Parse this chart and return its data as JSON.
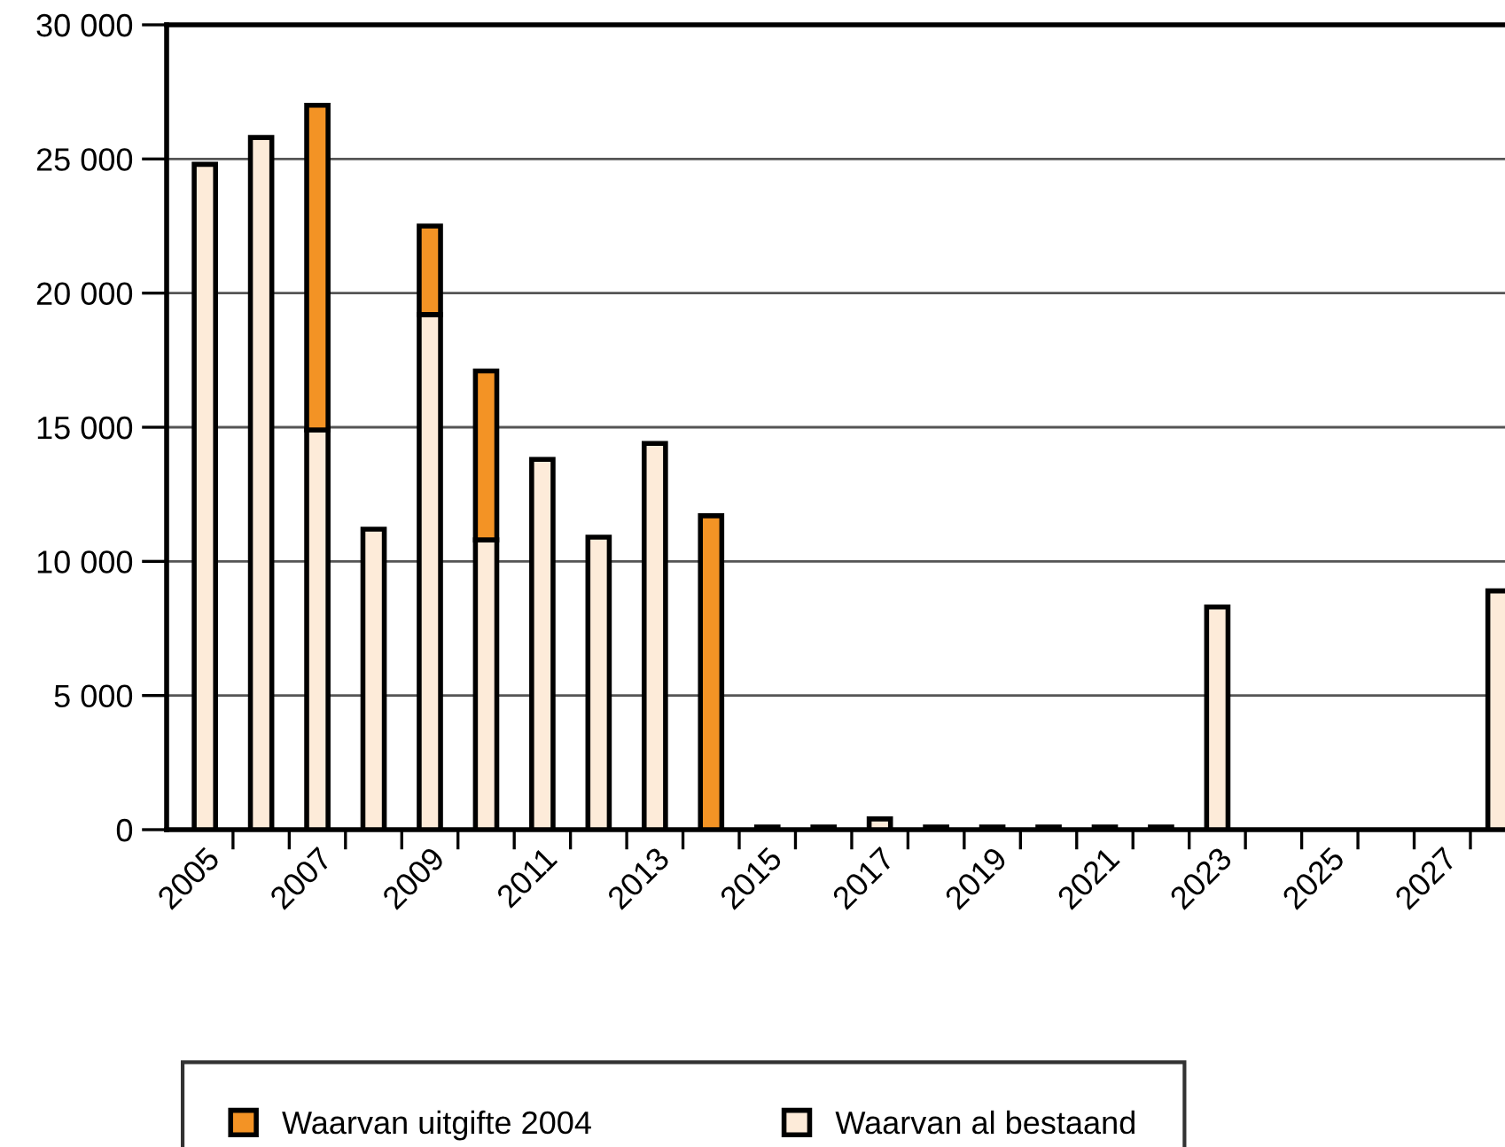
{
  "chart_data": {
    "type": "bar",
    "stacked": true,
    "categories": [
      "2005",
      null,
      "2007",
      null,
      "2009",
      null,
      "2011",
      null,
      "2013",
      null,
      "2015",
      null,
      "2017",
      null,
      "2019",
      null,
      "2021",
      null,
      "2023",
      null,
      "2025",
      null,
      "2027",
      null
    ],
    "series": [
      {
        "name": "Waarvan al bestaand",
        "color": "#fdebd9",
        "values": [
          24800,
          25800,
          14900,
          11200,
          19200,
          10800,
          13800,
          10900,
          14400,
          null,
          100,
          100,
          400,
          100,
          100,
          100,
          100,
          100,
          8300,
          null,
          null,
          null,
          null,
          8900
        ]
      },
      {
        "name": "Waarvan uitgifte 2004",
        "color": "#f39325",
        "values": [
          null,
          null,
          12100,
          null,
          3300,
          6300,
          null,
          null,
          null,
          11700,
          null,
          null,
          null,
          null,
          null,
          null,
          null,
          null,
          null,
          null,
          null,
          null,
          null,
          null
        ]
      }
    ],
    "ylim": [
      0,
      30000
    ],
    "yticks": [
      {
        "value": 0,
        "label": "0"
      },
      {
        "value": 5000,
        "label": "5 000"
      },
      {
        "value": 10000,
        "label": "10 000"
      },
      {
        "value": 15000,
        "label": "15 000"
      },
      {
        "value": 20000,
        "label": "20 000"
      },
      {
        "value": 25000,
        "label": "25 000"
      },
      {
        "value": 30000,
        "label": "30 000"
      }
    ],
    "grid": "y",
    "legend": "bottom"
  }
}
